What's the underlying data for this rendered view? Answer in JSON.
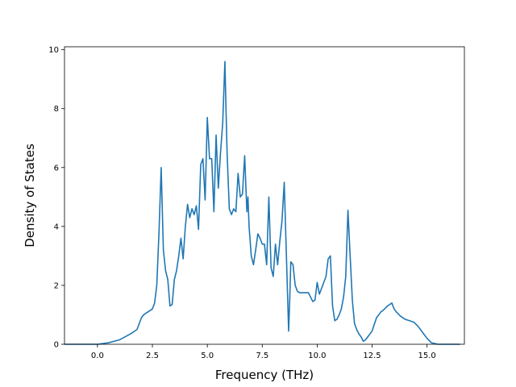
{
  "chart_data": {
    "type": "line",
    "title": "",
    "xlabel": "Frequency (THz)",
    "ylabel": "Density of States",
    "xlim": [
      -1.5,
      16.7
    ],
    "ylim": [
      0,
      10.1
    ],
    "xticks": [
      0.0,
      2.5,
      5.0,
      7.5,
      10.0,
      12.5,
      15.0
    ],
    "xtick_labels": [
      "0.0",
      "2.5",
      "5.0",
      "7.5",
      "10.0",
      "12.5",
      "15.0"
    ],
    "yticks": [
      0,
      2,
      4,
      6,
      8,
      10
    ],
    "ytick_labels": [
      "0",
      "2",
      "4",
      "6",
      "8",
      "10"
    ],
    "grid": false,
    "legend": "none",
    "series": [
      {
        "color": "#1f77b4",
        "x": [
          -1.5,
          -1.0,
          -0.5,
          0.0,
          0.5,
          1.0,
          1.5,
          1.8,
          2.0,
          2.1,
          2.3,
          2.5,
          2.6,
          2.7,
          2.8,
          2.9,
          3.0,
          3.1,
          3.2,
          3.3,
          3.4,
          3.5,
          3.6,
          3.7,
          3.8,
          3.9,
          4.0,
          4.1,
          4.2,
          4.3,
          4.4,
          4.5,
          4.6,
          4.7,
          4.8,
          4.9,
          5.0,
          5.1,
          5.2,
          5.3,
          5.4,
          5.5,
          5.6,
          5.7,
          5.8,
          5.85,
          5.9,
          6.0,
          6.1,
          6.2,
          6.3,
          6.4,
          6.5,
          6.6,
          6.7,
          6.8,
          6.85,
          6.9,
          7.0,
          7.1,
          7.2,
          7.3,
          7.4,
          7.5,
          7.6,
          7.7,
          7.8,
          7.9,
          8.0,
          8.1,
          8.2,
          8.3,
          8.4,
          8.5,
          8.6,
          8.7,
          8.75,
          8.8,
          8.9,
          9.0,
          9.1,
          9.2,
          9.4,
          9.6,
          9.8,
          9.9,
          10.0,
          10.1,
          10.2,
          10.3,
          10.4,
          10.5,
          10.6,
          10.7,
          10.8,
          10.9,
          11.0,
          11.1,
          11.2,
          11.3,
          11.4,
          11.5,
          11.6,
          11.7,
          11.8,
          11.9,
          12.0,
          12.1,
          12.2,
          12.3,
          12.5,
          12.7,
          12.9,
          13.0,
          13.2,
          13.4,
          13.5,
          13.6,
          13.8,
          14.0,
          14.2,
          14.4,
          14.6,
          14.8,
          15.0,
          15.2,
          15.5,
          16.0,
          16.5
        ],
        "y": [
          0,
          0,
          0,
          0,
          0.05,
          0.15,
          0.35,
          0.5,
          0.9,
          1.0,
          1.1,
          1.2,
          1.4,
          2.0,
          3.8,
          6.0,
          3.2,
          2.5,
          2.2,
          1.3,
          1.35,
          2.2,
          2.5,
          3.0,
          3.6,
          2.9,
          4.0,
          4.75,
          4.3,
          4.6,
          4.4,
          4.7,
          3.9,
          6.1,
          6.3,
          4.9,
          7.7,
          6.3,
          6.3,
          4.5,
          7.1,
          5.3,
          6.5,
          7.5,
          9.6,
          8.0,
          6.5,
          4.6,
          4.4,
          4.6,
          4.5,
          5.8,
          5.0,
          5.1,
          6.4,
          4.5,
          5.0,
          4.0,
          3.0,
          2.7,
          3.2,
          3.75,
          3.6,
          3.4,
          3.4,
          2.7,
          5.0,
          2.6,
          2.3,
          3.4,
          2.7,
          3.5,
          4.2,
          5.5,
          3.0,
          0.45,
          1.5,
          2.8,
          2.7,
          2.0,
          1.8,
          1.75,
          1.75,
          1.75,
          1.45,
          1.5,
          2.1,
          1.7,
          1.9,
          2.1,
          2.3,
          2.9,
          3.0,
          1.3,
          0.8,
          0.85,
          1.0,
          1.2,
          1.6,
          2.3,
          4.55,
          3.0,
          1.5,
          0.7,
          0.5,
          0.35,
          0.25,
          0.1,
          0.15,
          0.25,
          0.45,
          0.9,
          1.1,
          1.15,
          1.3,
          1.4,
          1.2,
          1.1,
          0.95,
          0.85,
          0.8,
          0.75,
          0.6,
          0.4,
          0.2,
          0.05,
          0,
          0,
          0
        ]
      }
    ]
  }
}
